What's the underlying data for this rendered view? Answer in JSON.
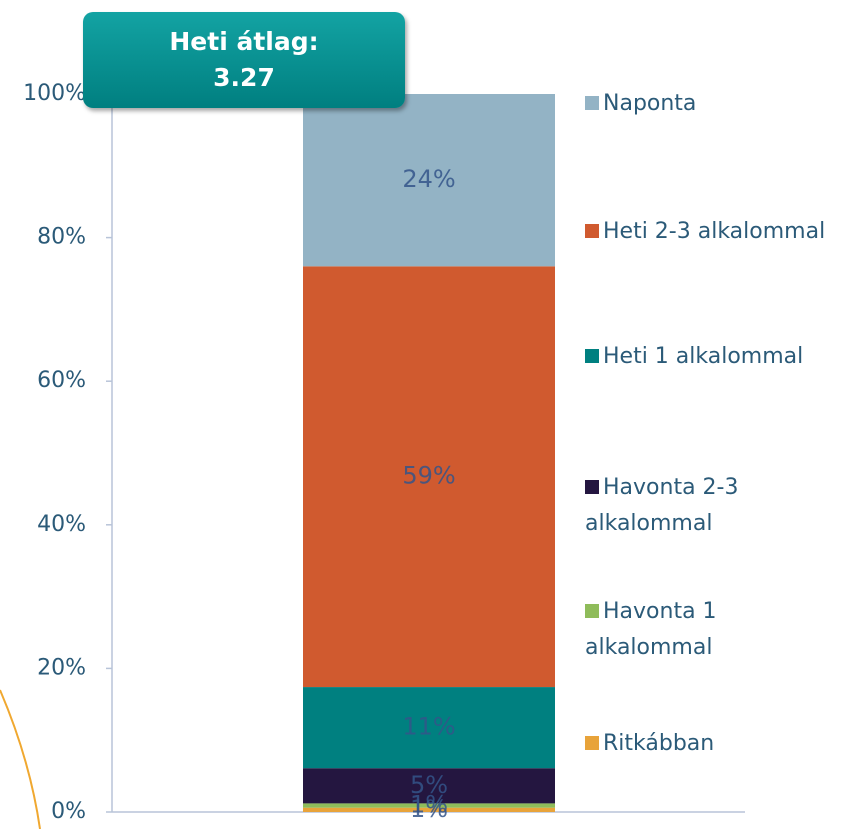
{
  "chart_data": {
    "type": "stacked_bar",
    "annotation": [
      "Heti átlag:",
      "3.27"
    ],
    "categories": [
      null
    ],
    "series": [
      {
        "name": "Ritkábban",
        "color": "#e8a33a",
        "values": [
          0.6
        ],
        "value_labels": [
          "1%"
        ]
      },
      {
        "name": "Havonta 1 alkalommal",
        "color": "#8fbc5a",
        "values": [
          0.6
        ],
        "value_labels": [
          "1%"
        ]
      },
      {
        "name": "Havonta 2-3 alkalommal",
        "color": "#241640",
        "values": [
          4.9
        ],
        "value_labels": [
          "5%"
        ]
      },
      {
        "name": "Heti 1 alkalommal",
        "color": "#008080",
        "values": [
          11.3
        ],
        "value_labels": [
          "11%"
        ]
      },
      {
        "name": "Heti 2-3 alkalommal",
        "color": "#d05a2f",
        "values": [
          58.6
        ],
        "value_labels": [
          "59%"
        ]
      },
      {
        "name": "Naponta",
        "color": "#93b3c5",
        "values": [
          24
        ],
        "value_labels": [
          "24%"
        ]
      }
    ],
    "ylim": [
      0,
      100
    ],
    "yticks": [
      {
        "value": 0,
        "label": "0%"
      },
      {
        "value": 20,
        "label": "20%"
      },
      {
        "value": 40,
        "label": "40%"
      },
      {
        "value": 60,
        "label": "60%"
      },
      {
        "value": 80,
        "label": "80%"
      },
      {
        "value": 100,
        "label": "100%"
      }
    ]
  }
}
